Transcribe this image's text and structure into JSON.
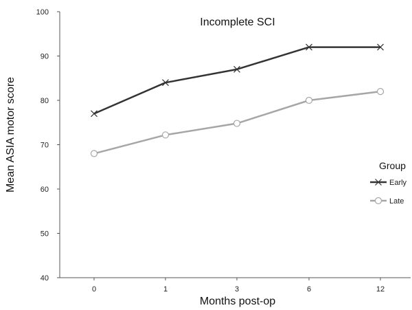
{
  "chart_data": {
    "type": "line",
    "title": "Incomplete SCI",
    "xlabel": "Months post-op",
    "ylabel": "Mean ASIA motor score",
    "categories": [
      "0",
      "1",
      "3",
      "6",
      "12"
    ],
    "ylim": [
      40,
      100
    ],
    "yticks": [
      "40",
      "50",
      "60",
      "70",
      "80",
      "90",
      "100"
    ],
    "grid": false,
    "legend": {
      "title": "Group",
      "placement": "right"
    },
    "series": [
      {
        "name": "Early",
        "values": [
          77,
          84,
          87,
          92,
          92
        ],
        "color": "#333333",
        "marker": "x"
      },
      {
        "name": "Late",
        "values": [
          68,
          72.2,
          74.8,
          80,
          82
        ],
        "color": "#a6a6a6",
        "marker": "circle"
      }
    ]
  }
}
